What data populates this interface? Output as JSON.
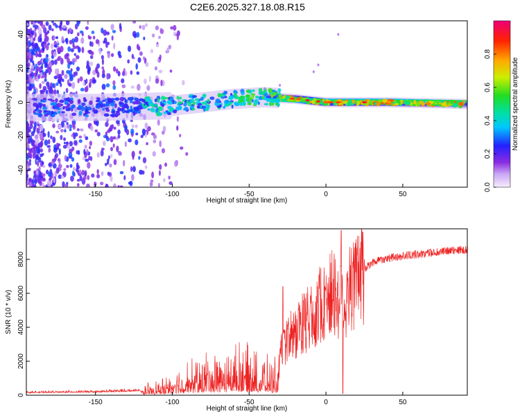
{
  "title": "C2E6.2025.327.18.08.R15",
  "colors": {
    "snr_line": "#ee2222",
    "axis": "#000000"
  },
  "chart_data": [
    {
      "type": "heatmap",
      "title": "C2E6.2025.327.18.08.R15",
      "xlabel": "Height of straight line (km)",
      "ylabel": "Frequency (Hz)",
      "xlim": [
        -195,
        92
      ],
      "ylim": [
        -50,
        48
      ],
      "xticks": [
        -150,
        -100,
        -50,
        0,
        50
      ],
      "xtick_labels": [
        "-150",
        "-100",
        "-50",
        "0",
        "50"
      ],
      "yticks": [
        -40,
        -20,
        0,
        20,
        40
      ],
      "ytick_labels": [
        "-40",
        "-20",
        "0",
        "20",
        "40"
      ],
      "colorbar": {
        "label": "Normalized spectral amplitude",
        "range": [
          0,
          1
        ],
        "ticks": [
          0.0,
          0.2,
          0.4,
          0.6,
          0.8
        ],
        "tick_labels": [
          "0.0",
          "0.2",
          "0.4",
          "0.6",
          "0.8"
        ]
      },
      "ridge_center_hz": [
        {
          "x": -190,
          "y": -3
        },
        {
          "x": -150,
          "y": -3
        },
        {
          "x": -100,
          "y": -2
        },
        {
          "x": -60,
          "y": 2
        },
        {
          "x": -40,
          "y": 3
        },
        {
          "x": -20,
          "y": 2
        },
        {
          "x": 0,
          "y": 0
        },
        {
          "x": 40,
          "y": 0
        },
        {
          "x": 92,
          "y": -1
        }
      ]
    },
    {
      "type": "line",
      "xlabel": "Height of straight line (km)",
      "ylabel": "SNR (10 * v/v)",
      "xlim": [
        -195,
        92
      ],
      "ylim": [
        0,
        9800
      ],
      "xticks": [
        -150,
        -100,
        -50,
        0,
        50
      ],
      "xtick_labels": [
        "-150",
        "-100",
        "-50",
        "0",
        "50"
      ],
      "yticks": [
        0,
        2000,
        4000,
        6000,
        8000
      ],
      "ytick_labels": [
        "0",
        "2000",
        "4000",
        "6000",
        "8000"
      ],
      "envelope": [
        {
          "x": -195,
          "y": 200
        },
        {
          "x": -150,
          "y": 250
        },
        {
          "x": -120,
          "y": 350
        },
        {
          "x": -105,
          "y": 600
        },
        {
          "x": -95,
          "y": 1000
        },
        {
          "x": -80,
          "y": 1500
        },
        {
          "x": -65,
          "y": 1600
        },
        {
          "x": -55,
          "y": 1900
        },
        {
          "x": -45,
          "y": 1500
        },
        {
          "x": -35,
          "y": 1300
        },
        {
          "x": -31,
          "y": 1300
        },
        {
          "x": -29,
          "y": 2600
        },
        {
          "x": -25,
          "y": 3200
        },
        {
          "x": -20,
          "y": 3700
        },
        {
          "x": -15,
          "y": 4200
        },
        {
          "x": -10,
          "y": 4600
        },
        {
          "x": -5,
          "y": 5200
        },
        {
          "x": 0,
          "y": 5800
        },
        {
          "x": 5,
          "y": 6000
        },
        {
          "x": 9,
          "y": 5500
        },
        {
          "x": 12,
          "y": 5400
        },
        {
          "x": 15,
          "y": 6200
        },
        {
          "x": 20,
          "y": 6800
        },
        {
          "x": 25,
          "y": 7400
        },
        {
          "x": 30,
          "y": 7800
        },
        {
          "x": 35,
          "y": 8000
        },
        {
          "x": 50,
          "y": 8200
        },
        {
          "x": 70,
          "y": 8400
        },
        {
          "x": 92,
          "y": 8600
        }
      ],
      "annotations": [
        {
          "x": 10,
          "y": 9700,
          "note": "peak"
        },
        {
          "x": 11,
          "y": 100,
          "note": "dropout"
        }
      ]
    }
  ]
}
